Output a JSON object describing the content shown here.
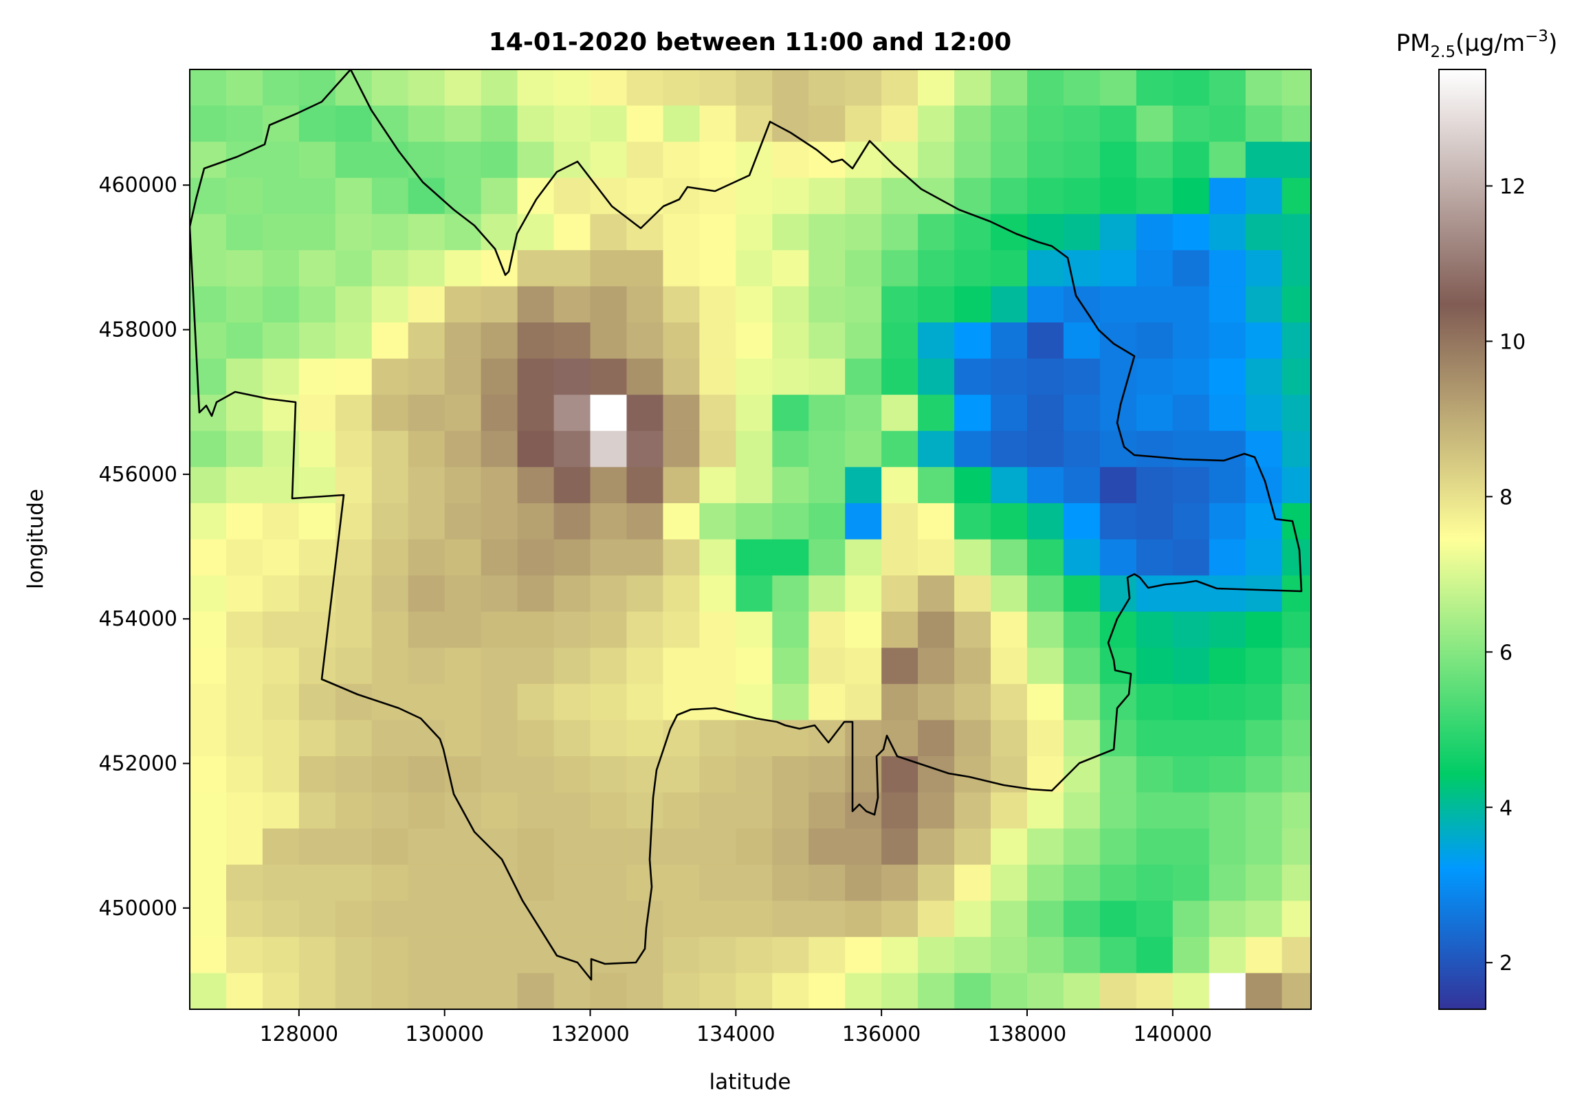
{
  "chart_data": {
    "type": "heatmap",
    "title": "14-01-2020 between 11:00 and 12:00",
    "xlabel": "latitude",
    "ylabel": "longitude",
    "xlim": [
      126500,
      141900
    ],
    "ylim": [
      448600,
      461600
    ],
    "x_ticks": [
      128000,
      130000,
      132000,
      134000,
      136000,
      138000,
      140000
    ],
    "y_ticks": [
      450000,
      452000,
      454000,
      456000,
      458000,
      460000
    ],
    "colorbar": {
      "title_main": "PM",
      "title_sub": "2.5",
      "title_unit": "(µg/m",
      "title_sup": "−3",
      "title_close": ")",
      "range": [
        1.4,
        13.5
      ],
      "ticks": [
        2,
        4,
        6,
        8,
        10,
        12
      ]
    },
    "grid": false,
    "legend": "colorbar-right",
    "colormap": "terrain",
    "cell_x_edges": [
      126500,
      127000,
      127500,
      128000,
      128500,
      129000,
      129500,
      130000,
      130500,
      131000,
      131500,
      132000,
      132500,
      133000,
      133500,
      134000,
      134500,
      135000,
      135500,
      136000,
      136500,
      137000,
      137500,
      138000,
      138500,
      139000,
      139500,
      140000,
      140500,
      141000,
      141500,
      141900
    ],
    "cell_y_edges": [
      461600,
      461100,
      460600,
      460100,
      459600,
      459100,
      458600,
      458100,
      457600,
      457100,
      456600,
      456100,
      455600,
      455100,
      454600,
      454100,
      453600,
      453100,
      452600,
      452100,
      451600,
      451100,
      450600,
      450100,
      449600,
      449100,
      448600
    ],
    "values": [
      [
        6.0,
        6.2,
        5.9,
        5.8,
        6.2,
        6.5,
        6.7,
        7.0,
        6.7,
        7.2,
        7.3,
        7.6,
        7.9,
        8.0,
        8.1,
        8.3,
        8.6,
        8.4,
        8.3,
        8.0,
        7.3,
        6.7,
        6.1,
        5.4,
        5.6,
        5.8,
        5.0,
        4.9,
        5.2,
        6.0,
        6.2
      ],
      [
        5.8,
        5.9,
        6.1,
        5.6,
        5.5,
        5.9,
        6.2,
        6.4,
        6.1,
        6.9,
        7.1,
        7.0,
        7.5,
        6.9,
        7.6,
        8.1,
        8.6,
        8.5,
        8.0,
        7.7,
        6.8,
        6.1,
        5.7,
        5.3,
        5.2,
        5.0,
        5.8,
        5.2,
        5.1,
        5.6,
        5.9
      ],
      [
        6.3,
        6.0,
        6.0,
        6.1,
        5.7,
        5.7,
        5.8,
        5.9,
        5.8,
        6.5,
        7.0,
        7.2,
        7.8,
        7.6,
        7.5,
        7.3,
        7.6,
        7.5,
        7.2,
        7.1,
        6.6,
        6.0,
        5.6,
        5.2,
        5.1,
        4.7,
        5.2,
        4.8,
        5.6,
        4.1,
        4.1
      ],
      [
        6.0,
        6.1,
        6.0,
        6.0,
        6.3,
        5.9,
        5.5,
        5.9,
        6.4,
        7.4,
        7.8,
        7.7,
        7.6,
        7.7,
        7.6,
        7.3,
        7.2,
        7.0,
        6.7,
        6.3,
        6.3,
        5.6,
        5.2,
        4.9,
        4.8,
        4.6,
        4.8,
        4.4,
        3.1,
        3.5,
        4.6
      ],
      [
        6.3,
        6.0,
        6.1,
        6.1,
        6.4,
        6.3,
        6.5,
        6.3,
        6.8,
        7.1,
        7.5,
        8.2,
        7.9,
        7.6,
        7.5,
        7.2,
        6.8,
        6.5,
        6.4,
        6.0,
        5.3,
        5.0,
        4.6,
        4.2,
        4.1,
        3.6,
        3.0,
        3.2,
        3.5,
        4.0,
        4.1
      ],
      [
        6.3,
        6.4,
        6.2,
        6.5,
        6.3,
        6.7,
        6.9,
        7.3,
        7.5,
        8.4,
        8.4,
        8.7,
        8.7,
        7.6,
        7.5,
        7.1,
        7.3,
        6.5,
        6.2,
        5.6,
        5.1,
        4.9,
        4.8,
        3.6,
        3.5,
        3.4,
        2.9,
        2.6,
        3.1,
        3.5,
        4.1
      ],
      [
        6.0,
        6.2,
        6.0,
        6.3,
        6.7,
        7.1,
        7.6,
        8.5,
        8.6,
        9.4,
        9.0,
        9.2,
        8.8,
        8.2,
        7.7,
        7.3,
        6.9,
        6.4,
        6.3,
        5.0,
        4.8,
        4.5,
        4.0,
        2.9,
        2.7,
        2.8,
        2.8,
        2.8,
        3.1,
        3.7,
        4.2
      ],
      [
        6.2,
        6.0,
        6.3,
        6.6,
        6.8,
        7.5,
        8.4,
        8.9,
        9.2,
        10.0,
        9.9,
        9.2,
        8.9,
        8.5,
        7.7,
        7.4,
        7.0,
        6.6,
        6.2,
        4.9,
        3.6,
        3.2,
        2.6,
        2.0,
        3.0,
        2.7,
        2.6,
        2.8,
        3.0,
        3.3,
        3.9
      ],
      [
        6.0,
        6.7,
        7.0,
        7.4,
        7.5,
        8.5,
        8.6,
        8.9,
        9.5,
        10.3,
        10.7,
        10.2,
        9.5,
        8.6,
        7.7,
        7.2,
        7.1,
        7.0,
        5.6,
        4.8,
        3.9,
        2.5,
        2.4,
        2.3,
        2.4,
        2.7,
        2.8,
        2.9,
        3.2,
        3.6,
        4.0
      ],
      [
        6.4,
        6.8,
        7.2,
        7.6,
        8.0,
        8.7,
        8.9,
        8.8,
        9.6,
        10.3,
        11.4,
        13.5,
        10.6,
        9.3,
        8.1,
        7.1,
        5.2,
        5.8,
        6.0,
        6.9,
        4.8,
        3.2,
        2.5,
        2.2,
        2.5,
        2.7,
        2.9,
        2.7,
        3.1,
        3.5,
        3.8
      ],
      [
        6.1,
        6.5,
        6.9,
        7.3,
        7.9,
        8.3,
        8.7,
        9.0,
        9.4,
        10.5,
        10.9,
        12.6,
        10.8,
        9.3,
        8.2,
        6.9,
        5.7,
        5.9,
        6.1,
        5.3,
        3.7,
        2.6,
        2.3,
        2.2,
        2.4,
        2.6,
        2.5,
        2.6,
        2.6,
        3.1,
        3.7
      ],
      [
        6.7,
        7.0,
        7.0,
        7.1,
        7.8,
        8.3,
        8.6,
        8.8,
        9.0,
        9.6,
        10.3,
        9.5,
        10.2,
        8.7,
        7.2,
        6.9,
        6.2,
        5.9,
        3.9,
        7.3,
        5.5,
        4.4,
        3.6,
        2.8,
        2.5,
        1.8,
        2.2,
        2.3,
        2.6,
        3.0,
        3.5
      ],
      [
        7.2,
        7.5,
        7.7,
        7.4,
        7.9,
        8.4,
        8.6,
        8.9,
        9.0,
        9.2,
        9.6,
        9.1,
        9.3,
        7.4,
        6.4,
        6.1,
        5.9,
        5.6,
        3.1,
        7.8,
        7.5,
        4.9,
        4.6,
        4.1,
        3.2,
        2.3,
        2.2,
        2.4,
        2.9,
        3.3,
        4.4
      ],
      [
        7.5,
        7.7,
        7.6,
        7.8,
        8.1,
        8.5,
        8.8,
        8.7,
        9.1,
        9.3,
        9.2,
        8.9,
        8.9,
        8.3,
        7.1,
        4.7,
        4.7,
        5.8,
        6.9,
        7.8,
        7.7,
        6.8,
        5.9,
        4.9,
        3.5,
        2.8,
        2.4,
        2.3,
        3.1,
        3.4,
        4.2
      ],
      [
        7.3,
        7.6,
        7.8,
        8.0,
        8.2,
        8.6,
        9.0,
        8.8,
        8.9,
        9.1,
        8.8,
        8.6,
        8.4,
        8.0,
        7.3,
        5.0,
        5.9,
        6.7,
        7.2,
        8.2,
        8.9,
        7.9,
        6.7,
        5.6,
        4.6,
        3.8,
        3.5,
        3.5,
        3.5,
        3.6,
        4.6
      ],
      [
        7.4,
        7.9,
        8.1,
        8.1,
        8.2,
        8.5,
        8.8,
        8.8,
        8.7,
        8.7,
        8.6,
        8.5,
        8.1,
        7.9,
        7.6,
        7.3,
        6.0,
        7.7,
        7.4,
        8.7,
        9.5,
        8.6,
        7.6,
        6.3,
        5.3,
        4.6,
        4.2,
        4.1,
        4.2,
        4.4,
        4.8
      ],
      [
        7.5,
        7.8,
        7.9,
        8.2,
        8.3,
        8.5,
        8.6,
        8.5,
        8.6,
        8.6,
        8.4,
        8.2,
        7.9,
        7.6,
        7.6,
        7.4,
        6.2,
        7.8,
        7.7,
        10.0,
        9.3,
        8.8,
        7.7,
        6.7,
        5.6,
        4.8,
        4.3,
        4.2,
        4.5,
        4.7,
        5.2
      ],
      [
        7.6,
        7.8,
        8.0,
        8.4,
        8.6,
        8.5,
        8.5,
        8.5,
        8.6,
        8.3,
        8.1,
        8.0,
        7.8,
        7.6,
        7.6,
        7.3,
        6.5,
        7.6,
        7.8,
        9.2,
        8.9,
        8.6,
        8.1,
        7.4,
        6.1,
        5.2,
        4.8,
        4.7,
        4.8,
        4.9,
        5.5
      ],
      [
        7.6,
        7.8,
        7.9,
        8.2,
        8.4,
        8.6,
        8.6,
        8.5,
        8.6,
        8.5,
        8.3,
        8.1,
        8.0,
        8.2,
        8.4,
        8.5,
        8.5,
        8.6,
        9.0,
        9.1,
        9.6,
        8.9,
        8.3,
        7.7,
        6.6,
        5.4,
        5.0,
        5.0,
        5.0,
        5.3,
        5.7
      ],
      [
        7.5,
        7.7,
        7.9,
        8.5,
        8.6,
        8.7,
        8.8,
        8.7,
        8.6,
        8.6,
        8.5,
        8.4,
        8.3,
        8.3,
        8.5,
        8.6,
        8.8,
        8.9,
        9.2,
        10.2,
        9.4,
        8.8,
        8.4,
        7.6,
        6.8,
        5.9,
        5.4,
        5.2,
        5.3,
        5.6,
        5.9
      ],
      [
        7.4,
        7.6,
        7.7,
        8.3,
        8.5,
        8.6,
        8.7,
        8.6,
        8.5,
        8.6,
        8.6,
        8.5,
        8.4,
        8.5,
        8.6,
        8.6,
        8.8,
        9.1,
        9.4,
        10.0,
        9.3,
        8.6,
        8.0,
        7.2,
        6.6,
        5.9,
        5.6,
        5.6,
        5.8,
        6.0,
        6.3
      ],
      [
        7.4,
        7.6,
        8.5,
        8.6,
        8.6,
        8.7,
        8.6,
        8.6,
        8.6,
        8.7,
        8.6,
        8.6,
        8.6,
        8.6,
        8.6,
        8.7,
        8.9,
        9.3,
        9.3,
        9.8,
        8.9,
        8.4,
        7.2,
        6.6,
        6.2,
        5.7,
        5.4,
        5.4,
        5.8,
        6.0,
        6.4
      ],
      [
        7.4,
        8.3,
        8.4,
        8.4,
        8.4,
        8.5,
        8.6,
        8.6,
        8.6,
        8.7,
        8.6,
        8.6,
        8.5,
        8.5,
        8.6,
        8.6,
        8.8,
        8.9,
        9.2,
        9.0,
        8.4,
        7.6,
        6.9,
        6.2,
        5.8,
        5.4,
        5.2,
        5.3,
        5.9,
        6.2,
        6.7
      ],
      [
        7.4,
        8.2,
        8.3,
        8.4,
        8.5,
        8.6,
        8.6,
        8.6,
        8.6,
        8.6,
        8.6,
        8.6,
        8.6,
        8.5,
        8.5,
        8.5,
        8.6,
        8.6,
        8.7,
        8.5,
        7.9,
        7.1,
        6.5,
        5.8,
        5.2,
        4.8,
        5.0,
        5.9,
        6.4,
        6.6,
        7.2
      ],
      [
        7.5,
        7.9,
        8.0,
        8.2,
        8.4,
        8.5,
        8.6,
        8.6,
        8.6,
        8.6,
        8.6,
        8.6,
        8.6,
        8.4,
        8.3,
        8.2,
        8.1,
        7.8,
        7.5,
        7.2,
        6.8,
        6.6,
        6.4,
        6.1,
        5.7,
        5.2,
        4.8,
        6.1,
        6.9,
        7.6,
        8.1
      ],
      [
        7.0,
        7.6,
        7.9,
        8.2,
        8.4,
        8.5,
        8.6,
        8.6,
        8.6,
        8.9,
        8.6,
        8.7,
        8.6,
        8.3,
        8.2,
        8.0,
        7.7,
        7.5,
        7.0,
        6.8,
        6.3,
        5.8,
        6.2,
        6.4,
        6.7,
        8.0,
        7.8,
        7.1,
        13.5,
        9.5,
        8.8
      ]
    ]
  }
}
